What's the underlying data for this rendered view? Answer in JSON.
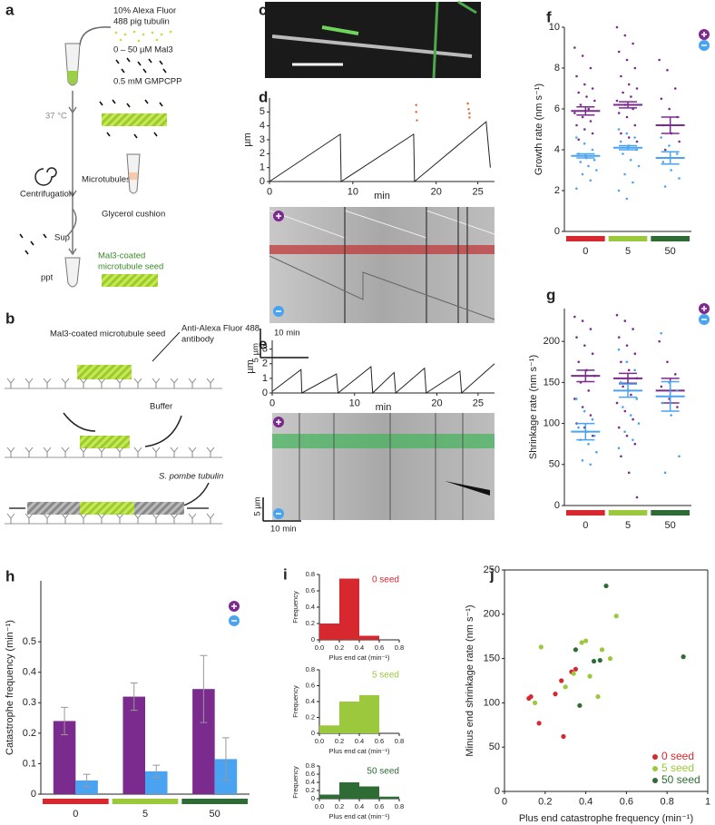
{
  "figure": {
    "panel_labels": [
      "a",
      "b",
      "c",
      "d",
      "e",
      "f",
      "g",
      "h",
      "i",
      "j"
    ]
  },
  "diagram_a": {
    "reagents": [
      "10% Alexa Fluor",
      "488 pig tubulin",
      "0 – 50 µM Mal3",
      "0.5 mM GMPCPP"
    ],
    "temperature": "37 °C",
    "microtubules": "Microtubules",
    "centrifugation": "Centrifugation",
    "cushion": "Glycerol cushion",
    "sup": "Sup",
    "seed": [
      "Mal3-coated",
      "microtubule seed"
    ],
    "ppt": "ppt"
  },
  "diagram_b": {
    "seed": "Mal3-coated microtubule seed",
    "antibody": [
      "Anti-Alexa Fluor 488",
      "antibody"
    ],
    "buffer": "Buffer",
    "tubulin": "S. pombe tubulin"
  },
  "kymograph_d": {
    "scale_y": "5 µm",
    "scale_x": "10 min"
  },
  "kymograph_e": {
    "scale_y": "5 µm",
    "scale_x": "10 min"
  },
  "chart_data": [
    {
      "type": "line",
      "xlabel": "min",
      "ylabel": "µm",
      "xlim": [
        0,
        27
      ],
      "ylim": [
        0,
        6
      ],
      "xticks": [
        0,
        10,
        20,
        25
      ],
      "yticks": [
        0,
        1,
        2,
        3,
        4,
        5
      ],
      "series": [
        {
          "color": "#222222",
          "x": [
            0,
            8.5,
            8.6,
            17.3,
            17.4,
            26,
            26.5
          ],
          "values": [
            0,
            3.4,
            0,
            3.4,
            0,
            4.3,
            1.0
          ]
        },
        {
          "color": "#e0622a",
          "mode": "markers",
          "x": [
            17.6,
            17.6,
            17.7,
            23.8,
            23.9,
            24,
            24
          ],
          "values": [
            5.5,
            5,
            4.4,
            5.6,
            5.2,
            4.9,
            4.6
          ]
        }
      ]
    },
    {
      "type": "line",
      "xlabel": "min",
      "ylabel": "µm",
      "xlim": [
        0,
        27
      ],
      "ylim": [
        0,
        3.6
      ],
      "xticks": [
        0,
        10,
        20,
        25
      ],
      "yticks": [
        0,
        1,
        2,
        3
      ],
      "series": [
        {
          "color": "#222222",
          "x": [
            0,
            3.5,
            3.6,
            7.8,
            8,
            12,
            12.2,
            14.8,
            15,
            18.5,
            18.7,
            22.8,
            23,
            27
          ],
          "values": [
            0.1,
            1.6,
            0,
            1.3,
            0,
            1.8,
            0,
            1.4,
            0,
            1.7,
            0,
            1.5,
            0,
            2
          ]
        }
      ]
    },
    {
      "type": "dotplot",
      "ylabel": "Growth rate (nm s⁻¹)",
      "categories": [
        "0",
        "5",
        "50"
      ],
      "category_colors": [
        "#d7282f",
        "#9bc83c",
        "#2e6b35"
      ],
      "ylim": [
        0,
        10
      ],
      "yticks": [
        0,
        2,
        4,
        6,
        8,
        10
      ],
      "series": [
        {
          "color": "#7b2a8e",
          "points": [
            [
              9,
              8.6,
              8,
              7.6,
              7.2,
              7,
              6.8,
              6.6,
              6.4,
              6.2,
              6,
              5.8,
              5.6,
              5.4,
              5.2,
              5,
              4.8,
              4.5
            ],
            [
              10,
              9.6,
              9.2,
              8.8,
              8.4,
              8,
              7.6,
              7.2,
              7,
              6.8,
              6.6,
              6.4,
              6.2,
              6,
              5.8,
              5.6,
              5.2,
              4.8,
              4.6,
              4.4
            ],
            [
              8.4,
              7.9,
              7,
              6.5,
              6,
              5.6,
              5.2,
              4.8,
              4.4,
              4
            ]
          ],
          "mean": [
            5.9,
            6.2,
            5.2
          ],
          "error": [
            0.2,
            0.15,
            0.4
          ]
        },
        {
          "color": "#4aa3f0",
          "points": [
            [
              4.6,
              4.3,
              4,
              3.8,
              3.6,
              3.5,
              3.4,
              3.2,
              3,
              2.8,
              2.5,
              2.1
            ],
            [
              5,
              4.8,
              4.6,
              4.4,
              4.2,
              4,
              3.8,
              3.5,
              3.2,
              2.8,
              2.4,
              2,
              1.6
            ],
            [
              4.6,
              4.2,
              3.8,
              3.4,
              3,
              2.6,
              2.2
            ]
          ],
          "mean": [
            3.7,
            4.1,
            3.6
          ],
          "error": [
            0.1,
            0.1,
            0.3
          ]
        }
      ]
    },
    {
      "type": "dotplot",
      "ylabel": "Shrinkage rate (nm s⁻¹)",
      "categories": [
        "0",
        "5",
        "50"
      ],
      "category_colors": [
        "#d7282f",
        "#9bc83c",
        "#2e6b35"
      ],
      "ylim": [
        0,
        240
      ],
      "yticks": [
        0,
        50,
        100,
        150,
        200
      ],
      "series": [
        {
          "color": "#7b2a8e",
          "points": [
            [
              230,
              225,
              215,
              205,
              195,
              185,
              175,
              165,
              158,
              150,
              140,
              130,
              120,
              110,
              100,
              95,
              85
            ],
            [
              232,
              225,
              215,
              205,
              195,
              185,
              175,
              165,
              155,
              145,
              135,
              125,
              115,
              105,
              95,
              85,
              75,
              60,
              40,
              10
            ],
            [
              200,
              175,
              160,
              145,
              130,
              120
            ]
          ],
          "mean": [
            158,
            155,
            140
          ],
          "error": [
            7,
            6,
            15
          ]
        },
        {
          "color": "#4aa3f0",
          "points": [
            [
              130,
              115,
              105,
              95,
              90,
              85,
              80,
              75,
              65,
              55,
              50
            ],
            [
              190,
              175,
              165,
              150,
              140,
              130,
              120,
              110,
              100,
              90,
              80,
              70
            ],
            [
              210,
              150,
              140,
              125,
              110,
              60,
              40
            ]
          ],
          "mean": [
            90,
            140,
            133
          ],
          "error": [
            10,
            8,
            18
          ]
        }
      ]
    },
    {
      "type": "bar",
      "ylabel": "Catastrophe frequency (min⁻¹)",
      "categories": [
        "0",
        "5",
        "50"
      ],
      "category_colors": [
        "#d7282f",
        "#9bc83c",
        "#2e6b35"
      ],
      "ylim": [
        0,
        0.7
      ],
      "yticks": [
        0,
        0.1,
        0.2,
        0.3,
        0.4,
        0.5
      ],
      "series": [
        {
          "color": "#7b2a8e",
          "values": [
            0.24,
            0.32,
            0.345
          ],
          "errors": [
            0.045,
            0.045,
            0.11
          ]
        },
        {
          "color": "#4aa3f0",
          "values": [
            0.045,
            0.075,
            0.115
          ],
          "errors": [
            0.02,
            0.02,
            0.07
          ]
        }
      ]
    },
    {
      "type": "histogram",
      "annotation": "0 seed",
      "color": "#d7282f",
      "ylabel": "Frequency",
      "xlabel": "Plus end cat (min⁻¹)",
      "bins": [
        0,
        0.2,
        0.4,
        0.6,
        0.8
      ],
      "counts": [
        0.2,
        0.75,
        0.05,
        0
      ],
      "xlim": [
        0,
        0.8
      ],
      "ylim": [
        0,
        0.8
      ],
      "xticks": [
        {
          "value": 0,
          "label": "0.0"
        },
        0.2,
        0.4,
        0.6,
        0.8
      ],
      "yticks": [
        0,
        0.2,
        0.4,
        0.6,
        0.8
      ]
    },
    {
      "type": "histogram",
      "annotation": "5 seed",
      "color": "#9bc83c",
      "ylabel": "Frequency",
      "xlabel": "Plus end cat (min⁻¹)",
      "bins": [
        0,
        0.2,
        0.4,
        0.6,
        0.8
      ],
      "counts": [
        0.1,
        0.4,
        0.48,
        0
      ],
      "xlim": [
        0,
        0.8
      ],
      "ylim": [
        0,
        0.8
      ],
      "xticks": [
        {
          "value": 0,
          "label": "0.0"
        },
        0.2,
        0.4,
        0.6,
        0.8
      ],
      "yticks": [
        0,
        0.2,
        0.4,
        0.6,
        0.8
      ]
    },
    {
      "type": "histogram",
      "annotation": "50 seed",
      "color": "#2e6b35",
      "ylabel": "Frequency",
      "xlabel": "Plus end cat (min⁻¹)",
      "bins": [
        0,
        0.2,
        0.4,
        0.6,
        0.8
      ],
      "counts": [
        0.1,
        0.4,
        0.3,
        0.05
      ],
      "xlim": [
        0,
        0.8
      ],
      "ylim": [
        0,
        0.8
      ],
      "xticks": [
        {
          "value": 0,
          "label": "0.0"
        },
        0.2,
        0.4,
        0.6,
        0.8
      ],
      "yticks": [
        0,
        0.2,
        0.4,
        0.6,
        0.8
      ]
    },
    {
      "type": "scatter",
      "xlabel": "Plus end catastrophe frequency (min⁻¹)",
      "ylabel": "Minus end shrinkage rate  (nm s⁻¹)",
      "xlim": [
        0,
        1
      ],
      "ylim": [
        0,
        250
      ],
      "xticks": [
        0,
        0.2,
        0.4,
        0.6,
        0.8,
        1
      ],
      "yticks": [
        0,
        50,
        100,
        150,
        200,
        250
      ],
      "legend": "lower right",
      "series": [
        {
          "name": "0 seed",
          "color": "#d7282f",
          "x": [
            0.12,
            0.13,
            0.17,
            0.25,
            0.28,
            0.29,
            0.33,
            0.35
          ],
          "values": [
            105,
            107,
            77,
            110,
            125,
            62,
            135,
            138
          ]
        },
        {
          "name": "5 seed",
          "color": "#9bc83c",
          "x": [
            0.15,
            0.18,
            0.3,
            0.34,
            0.38,
            0.4,
            0.42,
            0.46,
            0.48,
            0.52,
            0.55
          ],
          "values": [
            100,
            163,
            118,
            133,
            168,
            170,
            130,
            107,
            160,
            150,
            198
          ]
        },
        {
          "name": "50 seed",
          "color": "#2e6b35",
          "x": [
            0.35,
            0.37,
            0.44,
            0.47,
            0.5,
            0.88
          ],
          "values": [
            160,
            97,
            147,
            148,
            232,
            152
          ]
        }
      ]
    }
  ]
}
